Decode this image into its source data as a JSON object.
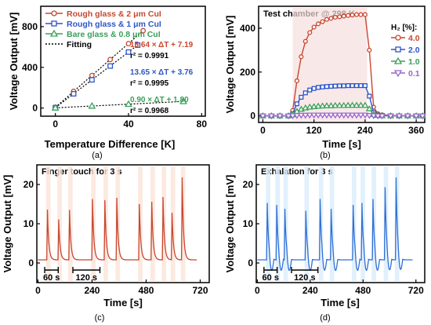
{
  "chart_data": [
    {
      "panel": "(a)",
      "type": "scatter",
      "xlabel": "Temperature Difference [K]",
      "ylabel": "Voltage Output [mV]",
      "xlim": [
        -8,
        82
      ],
      "ylim": [
        -80,
        1000
      ],
      "xticks": [
        0,
        40,
        80
      ],
      "yticks": [
        0,
        400,
        800
      ],
      "legend_position": "top-left",
      "series": [
        {
          "name": "Rough glass & 2 μm CuI",
          "color": "#c8472f",
          "marker": "circle",
          "x": [
            0,
            10,
            20,
            30,
            40,
            48
          ],
          "y": [
            7,
            164,
            320,
            477,
            633,
            760
          ]
        },
        {
          "name": "Rough glass & 1 μm CuI",
          "color": "#2f55c8",
          "marker": "square",
          "x": [
            0,
            10,
            20,
            30,
            40,
            45
          ],
          "y": [
            4,
            140,
            277,
            413,
            550,
            618
          ]
        },
        {
          "name": "Bare glass & 0.8 μm CuI",
          "color": "#3aa05a",
          "marker": "triangle",
          "x": [
            0,
            20,
            40,
            70
          ],
          "y": [
            2,
            20,
            38,
            65
          ]
        },
        {
          "name": "Fitting",
          "color": "#000000",
          "marker": "dotted-line",
          "x": [],
          "y": []
        }
      ],
      "annotations": [
        {
          "line1": "15.64 × ΔT + 7.19",
          "line2": "r² = 0.9991",
          "color": "#c8472f"
        },
        {
          "line1": "13.65 × ΔT + 3.76",
          "line2": "r² = 0.9995",
          "color": "#2f55c8"
        },
        {
          "line1": "0.90 × ΔT + 1.80",
          "line2": "r² = 0.9968",
          "color": "#3aa05a"
        }
      ]
    },
    {
      "panel": "(b)",
      "type": "line",
      "title": "Test chamber @ 298 K",
      "xlabel": "Time [s]",
      "ylabel": "Voltage Output [mV]",
      "xlim": [
        -10,
        380
      ],
      "ylim": [
        -30,
        500
      ],
      "xticks": [
        0,
        120,
        240,
        360
      ],
      "yticks": [
        0,
        200,
        400
      ],
      "legend_title": "H₂ [%]:",
      "legend_position": "right",
      "series": [
        {
          "name": "4.0",
          "color": "#c8472f",
          "marker": "circle",
          "x": [
            0,
            20,
            40,
            60,
            70,
            80,
            90,
            100,
            110,
            120,
            130,
            140,
            150,
            160,
            170,
            180,
            190,
            200,
            210,
            220,
            230,
            240,
            250,
            260,
            270,
            280,
            300,
            320,
            340,
            360,
            375
          ],
          "y": [
            0,
            0,
            0,
            0,
            25,
            160,
            270,
            340,
            380,
            405,
            420,
            430,
            440,
            445,
            450,
            452,
            455,
            458,
            460,
            462,
            462,
            462,
            300,
            40,
            10,
            5,
            2,
            0,
            0,
            0,
            0
          ]
        },
        {
          "name": "2.0",
          "color": "#2f55c8",
          "marker": "square",
          "x": [
            0,
            20,
            40,
            60,
            70,
            80,
            90,
            100,
            110,
            120,
            130,
            140,
            150,
            160,
            170,
            180,
            190,
            200,
            210,
            220,
            230,
            240,
            250,
            260,
            270,
            280,
            300,
            320,
            340,
            360,
            375
          ],
          "y": [
            0,
            0,
            0,
            0,
            10,
            55,
            85,
            105,
            118,
            125,
            130,
            132,
            134,
            135,
            136,
            137,
            137,
            138,
            138,
            138,
            138,
            138,
            90,
            15,
            4,
            2,
            0,
            0,
            0,
            0,
            0
          ]
        },
        {
          "name": "1.0",
          "color": "#3aa05a",
          "marker": "triangle",
          "x": [
            0,
            20,
            40,
            60,
            70,
            80,
            90,
            100,
            110,
            120,
            130,
            140,
            150,
            160,
            170,
            180,
            190,
            200,
            210,
            220,
            230,
            240,
            250,
            260,
            270,
            280,
            300,
            320,
            340,
            360,
            375
          ],
          "y": [
            0,
            0,
            0,
            0,
            5,
            20,
            30,
            36,
            40,
            42,
            44,
            45,
            46,
            46,
            47,
            47,
            47,
            48,
            48,
            48,
            48,
            48,
            32,
            6,
            2,
            0,
            0,
            0,
            0,
            0,
            0
          ]
        },
        {
          "name": "0.1",
          "color": "#9966cc",
          "marker": "triangle-down",
          "x": [
            0,
            20,
            40,
            60,
            70,
            80,
            90,
            100,
            110,
            120,
            130,
            140,
            150,
            160,
            170,
            180,
            190,
            200,
            210,
            220,
            230,
            240,
            250,
            260,
            270,
            280,
            300,
            320,
            340,
            360,
            375
          ],
          "y": [
            0,
            0,
            0,
            0,
            1,
            2,
            3,
            3,
            4,
            4,
            4,
            4,
            4,
            4,
            4,
            4,
            4,
            4,
            4,
            4,
            4,
            4,
            2,
            1,
            0,
            0,
            0,
            0,
            0,
            0,
            0
          ]
        }
      ]
    },
    {
      "panel": "(c)",
      "type": "line",
      "title": "Finger touch for 3 s",
      "xlabel": "Time [s]",
      "ylabel": "Voltage Output [mV]",
      "xlim": [
        -5,
        760
      ],
      "ylim": [
        -5,
        25
      ],
      "xticks": [
        0,
        240,
        480,
        720
      ],
      "yticks": [
        0,
        10,
        20
      ],
      "color": "#c8472f",
      "baseline": 0.8,
      "peaks": [
        {
          "t": 42,
          "v": 12.8
        },
        {
          "t": 92,
          "v": 10.3
        },
        {
          "t": 140,
          "v": 12.7
        },
        {
          "t": 242,
          "v": 15.5
        },
        {
          "t": 297,
          "v": 15.2
        },
        {
          "t": 350,
          "v": 15.8
        },
        {
          "t": 450,
          "v": 14.2
        },
        {
          "t": 505,
          "v": 14.8
        },
        {
          "t": 555,
          "v": 16.0
        },
        {
          "t": 595,
          "v": 12.0
        },
        {
          "t": 640,
          "v": 21.0
        }
      ],
      "scale_bars": [
        {
          "label": "60 s",
          "x0": 30,
          "x1": 90
        },
        {
          "label": "120 s",
          "x0": 155,
          "x1": 275
        }
      ]
    },
    {
      "panel": "(d)",
      "type": "line",
      "title": "Exhalation for 3 s",
      "xlabel": "Time [s]",
      "ylabel": "Voltage Output [mV]",
      "xlim": [
        -5,
        760
      ],
      "ylim": [
        -5,
        25
      ],
      "xticks": [
        0,
        240,
        480,
        720
      ],
      "yticks": [
        0,
        10,
        20
      ],
      "color": "#2f6fd6",
      "baseline": 0.8,
      "peaks": [
        {
          "t": 45,
          "v": 14.5
        },
        {
          "t": 88,
          "v": 14.0
        },
        {
          "t": 125,
          "v": 13.0
        },
        {
          "t": 220,
          "v": 12.5
        },
        {
          "t": 285,
          "v": 15.5
        },
        {
          "t": 335,
          "v": 13.0
        },
        {
          "t": 435,
          "v": 14.0
        },
        {
          "t": 475,
          "v": 14.5
        },
        {
          "t": 525,
          "v": 15.5
        },
        {
          "t": 580,
          "v": 18.5
        },
        {
          "t": 630,
          "v": 21.0
        }
      ],
      "scale_bars": [
        {
          "label": "60 s",
          "x0": 30,
          "x1": 90
        },
        {
          "label": "120 s",
          "x0": 155,
          "x1": 275
        }
      ]
    }
  ]
}
